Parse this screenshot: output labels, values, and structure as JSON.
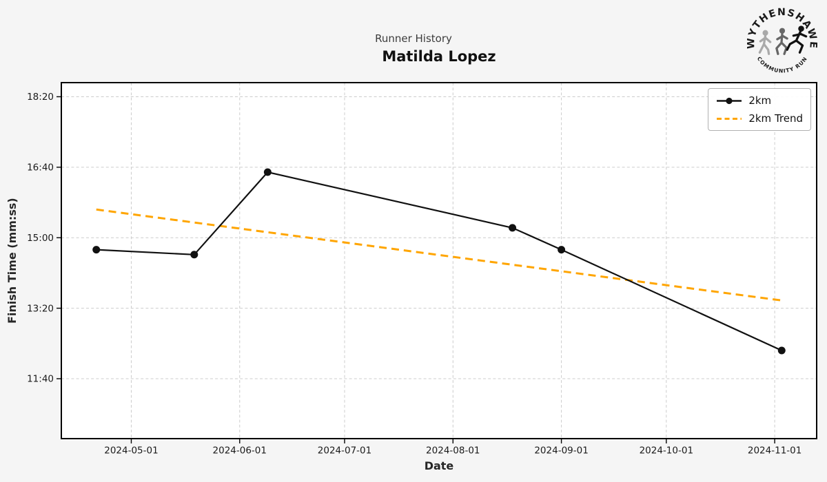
{
  "chart_data": {
    "type": "line",
    "title": "Runner History",
    "subtitle": "Matilda Lopez",
    "xlabel": "Date",
    "ylabel": "Finish Time (mm:ss)",
    "xlim": [
      "2024-04-11",
      "2024-11-13"
    ],
    "ylim_seconds": [
      615,
      1120
    ],
    "grid": true,
    "legend_position": "upper right",
    "x_ticks": [
      {
        "date": "2024-05-01",
        "label": "2024-05-01"
      },
      {
        "date": "2024-06-01",
        "label": "2024-06-01"
      },
      {
        "date": "2024-07-01",
        "label": "2024-07-01"
      },
      {
        "date": "2024-08-01",
        "label": "2024-08-01"
      },
      {
        "date": "2024-09-01",
        "label": "2024-09-01"
      },
      {
        "date": "2024-10-01",
        "label": "2024-10-01"
      },
      {
        "date": "2024-11-01",
        "label": "2024-11-01"
      }
    ],
    "y_ticks": [
      {
        "seconds": 1100,
        "label": "18:20"
      },
      {
        "seconds": 1000,
        "label": "16:40"
      },
      {
        "seconds": 900,
        "label": "15:00"
      },
      {
        "seconds": 800,
        "label": "13:20"
      },
      {
        "seconds": 700,
        "label": "11:40"
      }
    ],
    "series": [
      {
        "name": "2km",
        "color": "#111111",
        "marker": "circle",
        "line_style": "solid",
        "points": [
          {
            "date": "2024-04-21",
            "finish_time": "14:43",
            "seconds": 883
          },
          {
            "date": "2024-05-19",
            "finish_time": "14:36",
            "seconds": 876
          },
          {
            "date": "2024-06-09",
            "finish_time": "16:33",
            "seconds": 993
          },
          {
            "date": "2024-08-18",
            "finish_time": "15:14",
            "seconds": 914
          },
          {
            "date": "2024-09-01",
            "finish_time": "14:43",
            "seconds": 883
          },
          {
            "date": "2024-11-03",
            "finish_time": "12:20",
            "seconds": 740
          }
        ]
      }
    ],
    "trend": {
      "name": "2km Trend",
      "color": "#FFA500",
      "line_style": "dashed",
      "points": [
        {
          "date": "2024-04-21",
          "finish_time": "15:40",
          "seconds": 940
        },
        {
          "date": "2024-11-03",
          "finish_time": "13:31",
          "seconds": 811
        }
      ]
    }
  },
  "logo": {
    "top_text": "WYTHENSHAWE",
    "bottom_text": "COMMUNITY RUN",
    "runner_colors": [
      "#a9a9a9",
      "#666666",
      "#111111"
    ]
  },
  "colors": {
    "figure_background": "#f5f5f5",
    "plot_background": "#ffffff",
    "grid": "#cccccc",
    "spine": "#000000",
    "suptitle": "#3c3c3c",
    "title": "#111111",
    "tick_label": "#1a1a1a"
  }
}
